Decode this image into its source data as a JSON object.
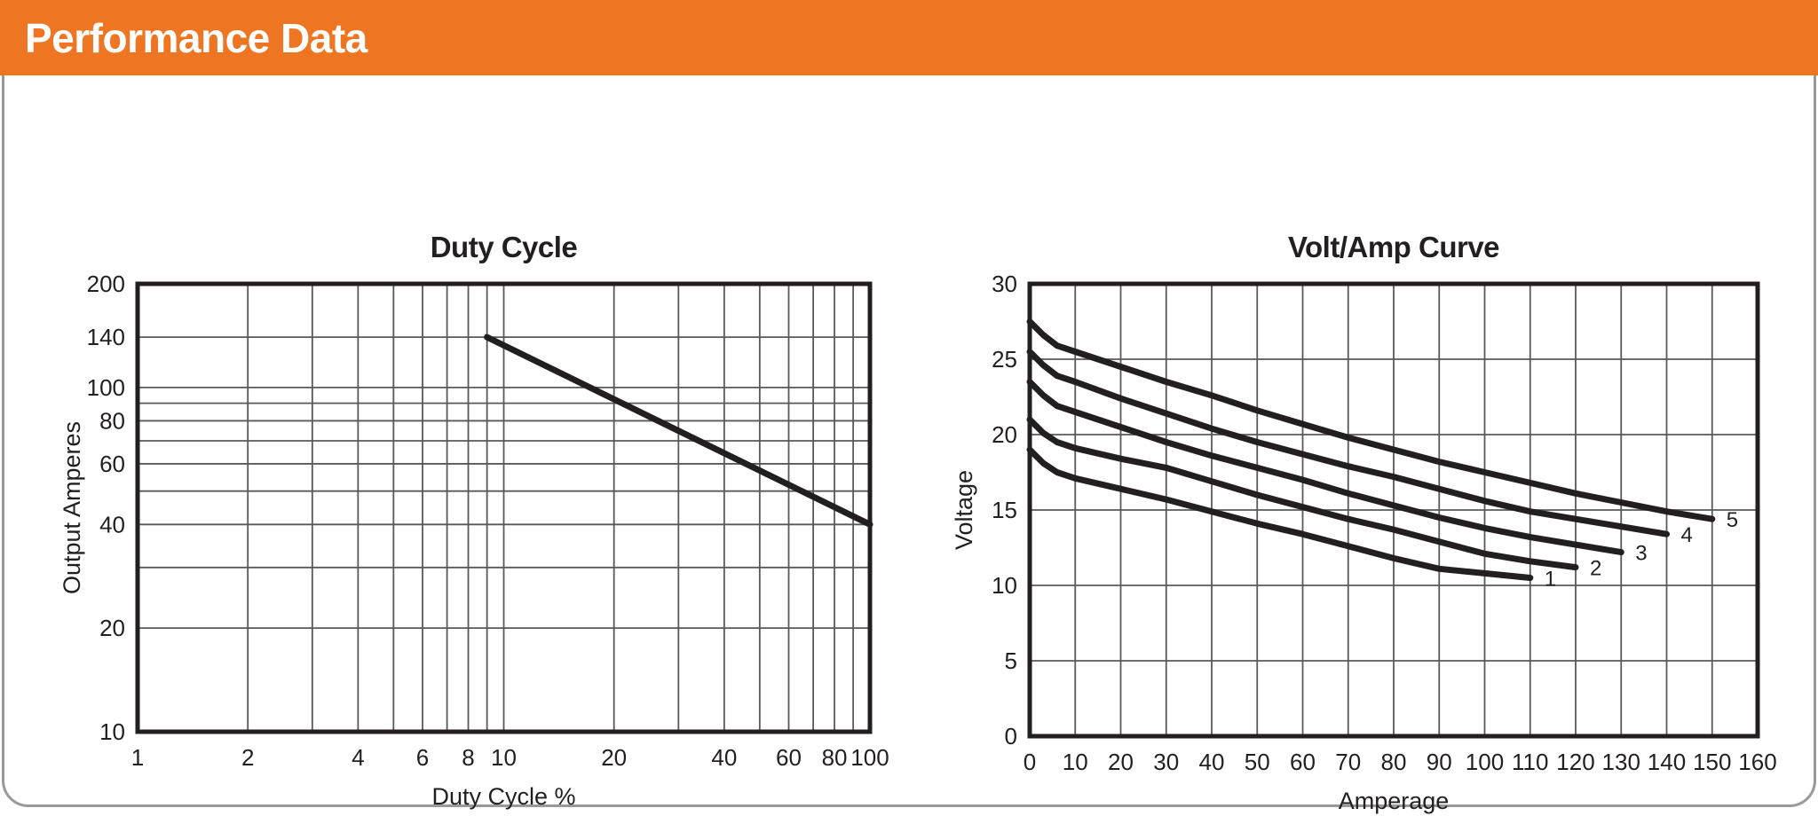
{
  "header": {
    "title": "Performance Data",
    "bg_color": "#EE7623",
    "text_color": "#FFFFFF"
  },
  "panel": {
    "border_color": "#97999B"
  },
  "style": {
    "line_color": "#231F20",
    "grid_color": "#58595B",
    "border_color": "#231F20"
  },
  "chart_data": [
    {
      "type": "line",
      "title": "Duty Cycle",
      "xlabel": "Duty Cycle %",
      "ylabel": "Output Amperes",
      "x_scale": "log",
      "y_scale": "log",
      "xlim": [
        1,
        100
      ],
      "ylim": [
        10,
        200
      ],
      "x_gridlines": [
        1,
        2,
        3,
        4,
        5,
        6,
        7,
        8,
        9,
        10,
        20,
        30,
        40,
        50,
        60,
        70,
        80,
        90,
        100
      ],
      "x_ticks": [
        1,
        2,
        4,
        6,
        8,
        10,
        20,
        40,
        60,
        80,
        100
      ],
      "y_gridlines": [
        10,
        20,
        30,
        40,
        50,
        60,
        70,
        80,
        90,
        100,
        140,
        200
      ],
      "y_ticks": [
        10,
        20,
        40,
        60,
        80,
        100,
        140,
        200
      ],
      "grid_on": true,
      "legend": "none",
      "series": [
        {
          "name": "output-amperes-vs-duty-cycle",
          "label": "",
          "points": [
            [
              9,
              140
            ],
            [
              100,
              40
            ]
          ]
        }
      ]
    },
    {
      "type": "line",
      "title": "Volt/Amp Curve",
      "xlabel": "Amperage",
      "ylabel": "Voltage",
      "x_scale": "linear",
      "y_scale": "linear",
      "xlim": [
        0,
        160
      ],
      "ylim": [
        0,
        30
      ],
      "x_gridlines": [
        0,
        10,
        20,
        30,
        40,
        50,
        60,
        70,
        80,
        90,
        100,
        110,
        120,
        130,
        140,
        150,
        160
      ],
      "x_ticks": [
        0,
        10,
        20,
        30,
        40,
        50,
        60,
        70,
        80,
        90,
        100,
        110,
        120,
        130,
        140,
        150,
        160
      ],
      "y_gridlines": [
        0,
        5,
        10,
        15,
        20,
        25,
        30
      ],
      "y_ticks": [
        0,
        5,
        10,
        15,
        20,
        25,
        30
      ],
      "grid_on": true,
      "legend": "end-labels",
      "series": [
        {
          "name": "curve-1",
          "label": "1",
          "points": [
            [
              0,
              19
            ],
            [
              3,
              18.1
            ],
            [
              6,
              17.5
            ],
            [
              10,
              17.1
            ],
            [
              20,
              16.4
            ],
            [
              30,
              15.7
            ],
            [
              40,
              14.9
            ],
            [
              50,
              14.1
            ],
            [
              60,
              13.4
            ],
            [
              70,
              12.6
            ],
            [
              80,
              11.8
            ],
            [
              90,
              11.1
            ],
            [
              100,
              10.8
            ],
            [
              110,
              10.5
            ]
          ]
        },
        {
          "name": "curve-2",
          "label": "2",
          "points": [
            [
              0,
              21
            ],
            [
              3,
              20.1
            ],
            [
              6,
              19.5
            ],
            [
              10,
              19.1
            ],
            [
              20,
              18.4
            ],
            [
              30,
              17.8
            ],
            [
              40,
              16.9
            ],
            [
              50,
              16
            ],
            [
              60,
              15.2
            ],
            [
              70,
              14.4
            ],
            [
              80,
              13.7
            ],
            [
              90,
              12.9
            ],
            [
              100,
              12.1
            ],
            [
              110,
              11.6
            ],
            [
              120,
              11.2
            ]
          ]
        },
        {
          "name": "curve-3",
          "label": "3",
          "points": [
            [
              0,
              23.5
            ],
            [
              3,
              22.6
            ],
            [
              6,
              21.9
            ],
            [
              10,
              21.5
            ],
            [
              20,
              20.5
            ],
            [
              30,
              19.5
            ],
            [
              40,
              18.6
            ],
            [
              50,
              17.8
            ],
            [
              60,
              17
            ],
            [
              70,
              16.1
            ],
            [
              80,
              15.3
            ],
            [
              90,
              14.5
            ],
            [
              100,
              13.8
            ],
            [
              110,
              13.2
            ],
            [
              120,
              12.7
            ],
            [
              130,
              12.2
            ]
          ]
        },
        {
          "name": "curve-4",
          "label": "4",
          "points": [
            [
              0,
              25.5
            ],
            [
              3,
              24.6
            ],
            [
              6,
              23.9
            ],
            [
              10,
              23.5
            ],
            [
              20,
              22.4
            ],
            [
              30,
              21.4
            ],
            [
              40,
              20.4
            ],
            [
              50,
              19.5
            ],
            [
              60,
              18.7
            ],
            [
              70,
              17.9
            ],
            [
              80,
              17.2
            ],
            [
              90,
              16.4
            ],
            [
              100,
              15.6
            ],
            [
              110,
              14.9
            ],
            [
              120,
              14.4
            ],
            [
              130,
              13.9
            ],
            [
              140,
              13.4
            ]
          ]
        },
        {
          "name": "curve-5",
          "label": "5",
          "points": [
            [
              0,
              27.5
            ],
            [
              3,
              26.6
            ],
            [
              6,
              25.9
            ],
            [
              10,
              25.5
            ],
            [
              20,
              24.5
            ],
            [
              30,
              23.5
            ],
            [
              40,
              22.6
            ],
            [
              50,
              21.6
            ],
            [
              60,
              20.7
            ],
            [
              70,
              19.8
            ],
            [
              80,
              19
            ],
            [
              90,
              18.2
            ],
            [
              100,
              17.5
            ],
            [
              110,
              16.8
            ],
            [
              120,
              16.1
            ],
            [
              130,
              15.5
            ],
            [
              140,
              14.9
            ],
            [
              150,
              14.4
            ]
          ]
        }
      ]
    }
  ]
}
